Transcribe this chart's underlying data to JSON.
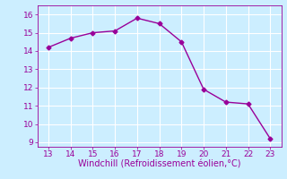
{
  "x": [
    13,
    14,
    15,
    16,
    17,
    18,
    19,
    20,
    21,
    22,
    23
  ],
  "y": [
    14.2,
    14.7,
    15.0,
    15.1,
    15.8,
    15.5,
    14.5,
    11.9,
    11.2,
    11.1,
    9.2
  ],
  "line_color": "#990099",
  "marker": "D",
  "marker_size": 2.5,
  "linewidth": 1.0,
  "xlim": [
    12.5,
    23.5
  ],
  "ylim": [
    8.75,
    16.5
  ],
  "xticks": [
    13,
    14,
    15,
    16,
    17,
    18,
    19,
    20,
    21,
    22,
    23
  ],
  "yticks": [
    9,
    10,
    11,
    12,
    13,
    14,
    15,
    16
  ],
  "xlabel": "Windchill (Refroidissement éolien,°C)",
  "background_color": "#cceeff",
  "grid_color": "#ffffff",
  "tick_color": "#990099",
  "label_color": "#990099",
  "tick_fontsize": 6.5,
  "xlabel_fontsize": 7.0
}
